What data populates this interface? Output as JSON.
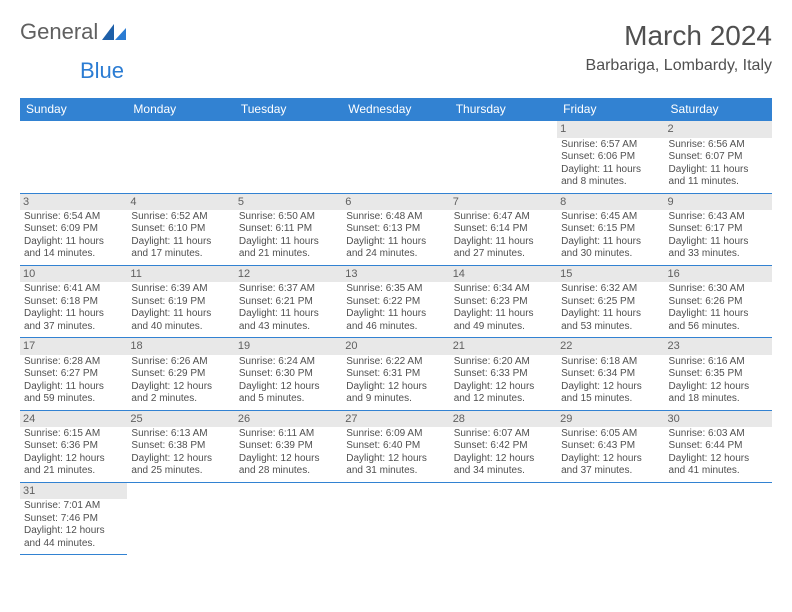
{
  "logo": {
    "text1": "General",
    "text2": "Blue"
  },
  "title": "March 2024",
  "subtitle": "Barbariga, Lombardy, Italy",
  "colors": {
    "header_bg": "#3282d2",
    "header_fg": "#ffffff",
    "daynum_bg": "#e8e8e8",
    "text": "#505050",
    "rule": "#3282d2"
  },
  "font": {
    "body_pt": 10,
    "title_pt": 28,
    "subtitle_pt": 16,
    "header_pt": 12
  },
  "weekdays": [
    "Sunday",
    "Monday",
    "Tuesday",
    "Wednesday",
    "Thursday",
    "Friday",
    "Saturday"
  ],
  "weeks": [
    [
      null,
      null,
      null,
      null,
      null,
      {
        "n": "1",
        "sunrise": "Sunrise: 6:57 AM",
        "sunset": "Sunset: 6:06 PM",
        "day1": "Daylight: 11 hours",
        "day2": "and 8 minutes."
      },
      {
        "n": "2",
        "sunrise": "Sunrise: 6:56 AM",
        "sunset": "Sunset: 6:07 PM",
        "day1": "Daylight: 11 hours",
        "day2": "and 11 minutes."
      }
    ],
    [
      {
        "n": "3",
        "sunrise": "Sunrise: 6:54 AM",
        "sunset": "Sunset: 6:09 PM",
        "day1": "Daylight: 11 hours",
        "day2": "and 14 minutes."
      },
      {
        "n": "4",
        "sunrise": "Sunrise: 6:52 AM",
        "sunset": "Sunset: 6:10 PM",
        "day1": "Daylight: 11 hours",
        "day2": "and 17 minutes."
      },
      {
        "n": "5",
        "sunrise": "Sunrise: 6:50 AM",
        "sunset": "Sunset: 6:11 PM",
        "day1": "Daylight: 11 hours",
        "day2": "and 21 minutes."
      },
      {
        "n": "6",
        "sunrise": "Sunrise: 6:48 AM",
        "sunset": "Sunset: 6:13 PM",
        "day1": "Daylight: 11 hours",
        "day2": "and 24 minutes."
      },
      {
        "n": "7",
        "sunrise": "Sunrise: 6:47 AM",
        "sunset": "Sunset: 6:14 PM",
        "day1": "Daylight: 11 hours",
        "day2": "and 27 minutes."
      },
      {
        "n": "8",
        "sunrise": "Sunrise: 6:45 AM",
        "sunset": "Sunset: 6:15 PM",
        "day1": "Daylight: 11 hours",
        "day2": "and 30 minutes."
      },
      {
        "n": "9",
        "sunrise": "Sunrise: 6:43 AM",
        "sunset": "Sunset: 6:17 PM",
        "day1": "Daylight: 11 hours",
        "day2": "and 33 minutes."
      }
    ],
    [
      {
        "n": "10",
        "sunrise": "Sunrise: 6:41 AM",
        "sunset": "Sunset: 6:18 PM",
        "day1": "Daylight: 11 hours",
        "day2": "and 37 minutes."
      },
      {
        "n": "11",
        "sunrise": "Sunrise: 6:39 AM",
        "sunset": "Sunset: 6:19 PM",
        "day1": "Daylight: 11 hours",
        "day2": "and 40 minutes."
      },
      {
        "n": "12",
        "sunrise": "Sunrise: 6:37 AM",
        "sunset": "Sunset: 6:21 PM",
        "day1": "Daylight: 11 hours",
        "day2": "and 43 minutes."
      },
      {
        "n": "13",
        "sunrise": "Sunrise: 6:35 AM",
        "sunset": "Sunset: 6:22 PM",
        "day1": "Daylight: 11 hours",
        "day2": "and 46 minutes."
      },
      {
        "n": "14",
        "sunrise": "Sunrise: 6:34 AM",
        "sunset": "Sunset: 6:23 PM",
        "day1": "Daylight: 11 hours",
        "day2": "and 49 minutes."
      },
      {
        "n": "15",
        "sunrise": "Sunrise: 6:32 AM",
        "sunset": "Sunset: 6:25 PM",
        "day1": "Daylight: 11 hours",
        "day2": "and 53 minutes."
      },
      {
        "n": "16",
        "sunrise": "Sunrise: 6:30 AM",
        "sunset": "Sunset: 6:26 PM",
        "day1": "Daylight: 11 hours",
        "day2": "and 56 minutes."
      }
    ],
    [
      {
        "n": "17",
        "sunrise": "Sunrise: 6:28 AM",
        "sunset": "Sunset: 6:27 PM",
        "day1": "Daylight: 11 hours",
        "day2": "and 59 minutes."
      },
      {
        "n": "18",
        "sunrise": "Sunrise: 6:26 AM",
        "sunset": "Sunset: 6:29 PM",
        "day1": "Daylight: 12 hours",
        "day2": "and 2 minutes."
      },
      {
        "n": "19",
        "sunrise": "Sunrise: 6:24 AM",
        "sunset": "Sunset: 6:30 PM",
        "day1": "Daylight: 12 hours",
        "day2": "and 5 minutes."
      },
      {
        "n": "20",
        "sunrise": "Sunrise: 6:22 AM",
        "sunset": "Sunset: 6:31 PM",
        "day1": "Daylight: 12 hours",
        "day2": "and 9 minutes."
      },
      {
        "n": "21",
        "sunrise": "Sunrise: 6:20 AM",
        "sunset": "Sunset: 6:33 PM",
        "day1": "Daylight: 12 hours",
        "day2": "and 12 minutes."
      },
      {
        "n": "22",
        "sunrise": "Sunrise: 6:18 AM",
        "sunset": "Sunset: 6:34 PM",
        "day1": "Daylight: 12 hours",
        "day2": "and 15 minutes."
      },
      {
        "n": "23",
        "sunrise": "Sunrise: 6:16 AM",
        "sunset": "Sunset: 6:35 PM",
        "day1": "Daylight: 12 hours",
        "day2": "and 18 minutes."
      }
    ],
    [
      {
        "n": "24",
        "sunrise": "Sunrise: 6:15 AM",
        "sunset": "Sunset: 6:36 PM",
        "day1": "Daylight: 12 hours",
        "day2": "and 21 minutes."
      },
      {
        "n": "25",
        "sunrise": "Sunrise: 6:13 AM",
        "sunset": "Sunset: 6:38 PM",
        "day1": "Daylight: 12 hours",
        "day2": "and 25 minutes."
      },
      {
        "n": "26",
        "sunrise": "Sunrise: 6:11 AM",
        "sunset": "Sunset: 6:39 PM",
        "day1": "Daylight: 12 hours",
        "day2": "and 28 minutes."
      },
      {
        "n": "27",
        "sunrise": "Sunrise: 6:09 AM",
        "sunset": "Sunset: 6:40 PM",
        "day1": "Daylight: 12 hours",
        "day2": "and 31 minutes."
      },
      {
        "n": "28",
        "sunrise": "Sunrise: 6:07 AM",
        "sunset": "Sunset: 6:42 PM",
        "day1": "Daylight: 12 hours",
        "day2": "and 34 minutes."
      },
      {
        "n": "29",
        "sunrise": "Sunrise: 6:05 AM",
        "sunset": "Sunset: 6:43 PM",
        "day1": "Daylight: 12 hours",
        "day2": "and 37 minutes."
      },
      {
        "n": "30",
        "sunrise": "Sunrise: 6:03 AM",
        "sunset": "Sunset: 6:44 PM",
        "day1": "Daylight: 12 hours",
        "day2": "and 41 minutes."
      }
    ],
    [
      {
        "n": "31",
        "sunrise": "Sunrise: 7:01 AM",
        "sunset": "Sunset: 7:46 PM",
        "day1": "Daylight: 12 hours",
        "day2": "and 44 minutes."
      },
      null,
      null,
      null,
      null,
      null,
      null
    ]
  ]
}
